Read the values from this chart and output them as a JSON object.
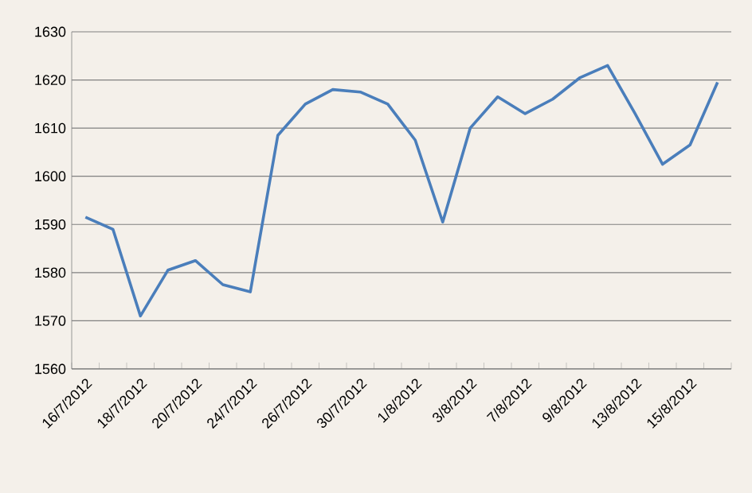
{
  "chart_data": {
    "type": "line",
    "categories": [
      "16/7/2012",
      null,
      "18/7/2012",
      null,
      "20/7/2012",
      null,
      "24/7/2012",
      null,
      "26/7/2012",
      null,
      "30/7/2012",
      null,
      "1/8/2012",
      null,
      "3/8/2012",
      null,
      "7/8/2012",
      null,
      "9/8/2012",
      null,
      "13/8/2012",
      null,
      "15/8/2012",
      null
    ],
    "series": [
      {
        "color": "#4a7ebb",
        "values": [
          1591.5,
          1589,
          1571,
          1580.5,
          1582.5,
          1577.5,
          1576,
          1608.5,
          1615,
          1618,
          1617.5,
          1615,
          1607.5,
          1590.5,
          1610,
          1616.5,
          1613,
          1616,
          1620.5,
          1623,
          1613,
          1602.5,
          1606.5,
          1619.5
        ]
      }
    ],
    "ylim": [
      1560,
      1630
    ],
    "yticks": [
      1560,
      1570,
      1580,
      1590,
      1600,
      1610,
      1620,
      1630
    ],
    "grid": "y",
    "marker": "none",
    "line_style": "solid"
  }
}
